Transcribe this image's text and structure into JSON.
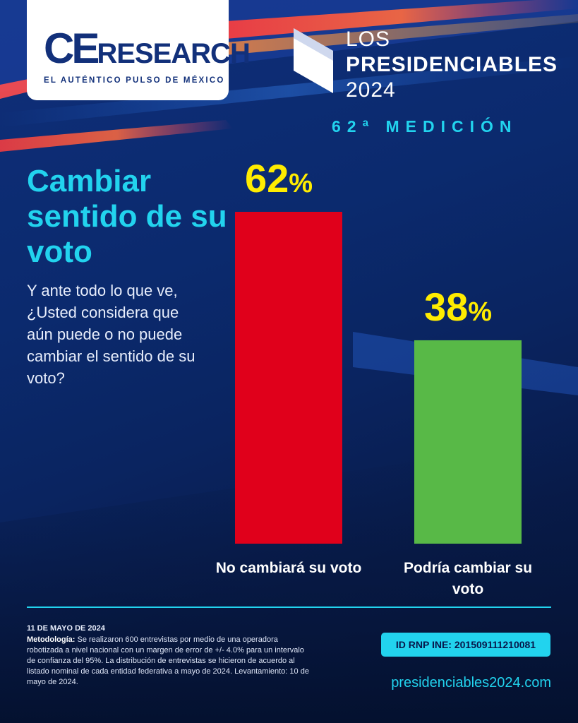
{
  "brand": {
    "logo_ce": "CE",
    "logo_rest": "RESEARCH",
    "tagline": "EL AUTÉNTICO PULSO DE MÉXICO"
  },
  "campaign": {
    "line1": "LOS",
    "line2": "PRESIDENCIABLES",
    "line3": "2024",
    "edition": "62ª MEDICIÓN"
  },
  "headline": "Cambiar sentido de su voto",
  "question": "Y ante todo lo que ve, ¿Usted considera que aún puede o no puede cambiar el sentido de su voto?",
  "chart_data": {
    "type": "bar",
    "categories": [
      "No cambiará su voto",
      "Podría cambiar su voto"
    ],
    "values": [
      62,
      38
    ],
    "value_labels": [
      "62%",
      "38%"
    ],
    "colors": [
      "#e0001b",
      "#58b947"
    ],
    "ylim": [
      0,
      62
    ],
    "label_color": "#ffec00"
  },
  "footer": {
    "date": "11 DE MAYO DE 2024",
    "methodology_label": "Metodología:",
    "methodology_text": "Se realizaron 600 entrevistas por medio de una operadora robotizada a nivel nacional con un margen de error de +/- 4.0% para un intervalo de confianza del 95%. La distribución de entrevistas se hicieron de acuerdo al listado nominal de cada entidad federativa a mayo de 2024. Levantamiento: 10 de mayo de 2024.",
    "rnp": "ID RNP INE:  201509111210081",
    "website": "presidenciables2024.com"
  },
  "colors": {
    "accent": "#22d3ee",
    "highlight": "#ffec00",
    "background": "#0b2a6e"
  }
}
